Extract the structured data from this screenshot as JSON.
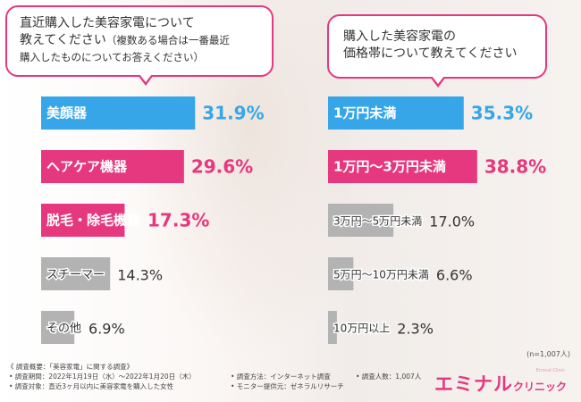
{
  "questions": {
    "left_line1": "直近購入した美容家電について",
    "left_line2a": "教えてください",
    "left_line2b": "（複数ある場合は一番最近",
    "left_line3": "購入したものについてお答えください）",
    "right_line1": "購入した美容家電の",
    "right_line2": "価格帯について教えてください"
  },
  "sample_note": "(n=1,007人)",
  "footer": {
    "overview": "《 調査概要：「美容家電」に関する調査》",
    "period": "• 調査期間：2022年1月19日（水）～2022年1月20日（木）",
    "target": "• 調査対象：直近3ヶ月以内に美容家電を購入した女性",
    "method": "• 調査方法：インターネット調査",
    "provider": "• モニター提供元：ゼネラルリサーチ",
    "count": "• 調査人数：1,007人"
  },
  "logo": {
    "main": "エミナル",
    "sub": "クリニック",
    "tiny": "Eminal Clinic"
  },
  "colors": {
    "blue": "#36a6e9",
    "pink": "#e5387e",
    "gray": "#b3b3b3"
  },
  "chart_data": [
    {
      "type": "bar",
      "orientation": "horizontal",
      "categories": [
        "美顔器",
        "ヘアケア機器",
        "脱毛・除毛機器",
        "スチーマー",
        "その他"
      ],
      "values": [
        31.9,
        29.6,
        17.3,
        14.3,
        6.9
      ],
      "value_labels": [
        "31.9%",
        "29.6%",
        "17.3%",
        "14.3%",
        "6.9%"
      ],
      "bar_colors": [
        "blue",
        "pink",
        "pink",
        "gray",
        "gray"
      ],
      "unit": "%"
    },
    {
      "type": "bar",
      "orientation": "horizontal",
      "categories": [
        "1万円未満",
        "1万円〜3万円未満",
        "3万円〜5万円未満",
        "5万円〜10万円未満",
        "10万円以上"
      ],
      "values": [
        35.3,
        38.8,
        17.0,
        6.6,
        2.3
      ],
      "value_labels": [
        "35.3%",
        "38.8%",
        "17.0%",
        "6.6%",
        "2.3%"
      ],
      "bar_colors": [
        "blue",
        "pink",
        "gray",
        "gray",
        "gray"
      ],
      "unit": "%"
    }
  ]
}
